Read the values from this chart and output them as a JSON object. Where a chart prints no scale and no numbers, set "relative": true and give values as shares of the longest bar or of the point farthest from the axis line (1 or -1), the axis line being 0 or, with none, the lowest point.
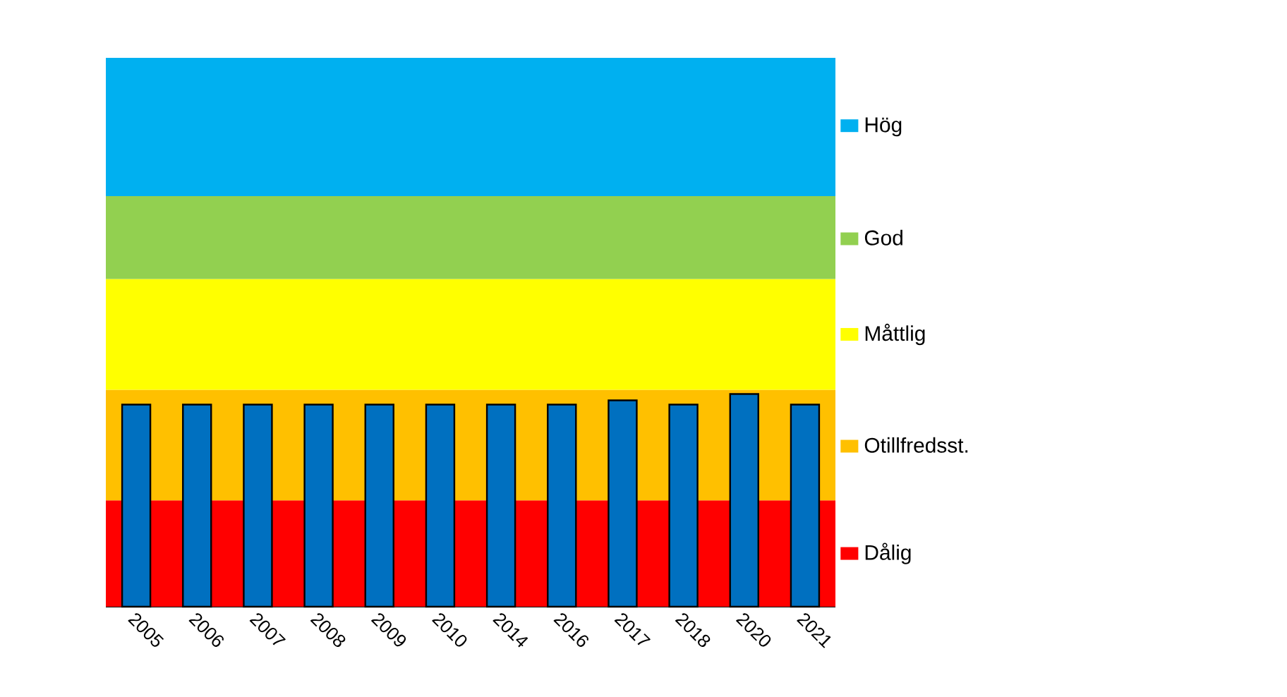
{
  "chart_data": {
    "type": "bar",
    "relative": true,
    "categories": [
      "2005",
      "2006",
      "2007",
      "2008",
      "2009",
      "2010",
      "2014",
      "2016",
      "2017",
      "2018",
      "2020",
      "2021"
    ],
    "values": [
      0.95,
      0.95,
      0.95,
      0.95,
      0.95,
      0.95,
      0.95,
      0.95,
      0.97,
      0.95,
      1,
      0.95
    ],
    "color": "#0070c0",
    "bands": [
      {
        "axis": "y",
        "from": 0,
        "to": 0.5,
        "label": "Dålig",
        "color": "#ff0000"
      },
      {
        "axis": "y",
        "from": 0.5,
        "to": 1.02,
        "label": "Otillfredsst.",
        "color": "#ffc000"
      },
      {
        "axis": "y",
        "from": 1.02,
        "to": 1.54,
        "label": "Måttlig",
        "color": "#ffff00"
      },
      {
        "axis": "y",
        "from": 1.54,
        "to": 1.93,
        "label": "God",
        "color": "#92d050"
      },
      {
        "axis": "y",
        "from": 1.93,
        "to": 2.58,
        "label": "Hög",
        "color": "#00b0f0"
      }
    ]
  }
}
